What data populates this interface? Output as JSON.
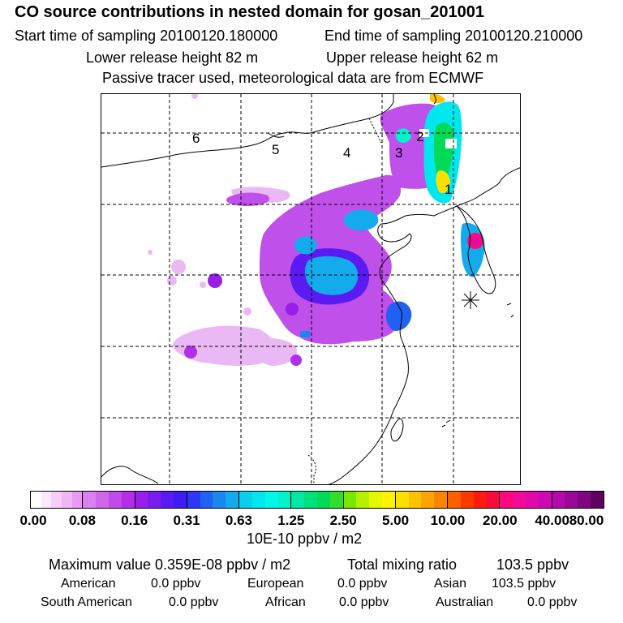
{
  "header": {
    "title": "CO  source contributions in nested domain for gosan_201001",
    "start_label": "Start time of sampling 20100120.180000",
    "end_label": "End time of sampling 20100120.210000",
    "lower_label": "Lower release height   82 m",
    "upper_label": "Upper release height   62 m",
    "note": "Passive tracer used, meteorological data are from ECMWF"
  },
  "map": {
    "region_labels": [
      "1",
      "2",
      "3",
      "4",
      "5",
      "6"
    ]
  },
  "colorbar": {
    "ticks": [
      "0.00",
      "0.08",
      "0.16",
      "0.31",
      "0.63",
      "1.25",
      "2.50",
      "5.00",
      "10.00",
      "20.00",
      "40.00",
      "80.00"
    ],
    "unit": "10E-10 ppbv / m2",
    "segments": [
      [
        "#ffffff",
        "#fbe8fc",
        "#f5cff8",
        "#efb6f5",
        "#e79cf2"
      ],
      [
        "#dd80ef",
        "#d066ec",
        "#c24aea",
        "#b22ee8"
      ],
      [
        "#9a1eea",
        "#7a1cee",
        "#5a1af2",
        "#3e1cf4"
      ],
      [
        "#2a3af4",
        "#2060f2",
        "#1a86f0",
        "#14aaee"
      ],
      [
        "#08d0ee",
        "#00e8ee",
        "#00f8e8",
        "#00f4cc"
      ],
      [
        "#00e8a4",
        "#00e07c",
        "#00da56",
        "#30e028"
      ],
      [
        "#78e800",
        "#b4f000",
        "#e6f800",
        "#fcf400"
      ],
      [
        "#fce000",
        "#fcc400",
        "#fca400",
        "#fc8400"
      ],
      [
        "#fc6000",
        "#fc3a00",
        "#fc1a10",
        "#f80a3a"
      ],
      [
        "#fc0a7c",
        "#f40a98",
        "#e00aa8",
        "#cc0ab4"
      ],
      [
        "#b40aac",
        "#9a0898",
        "#800680",
        "#5e0460"
      ]
    ]
  },
  "stats": {
    "max_value": "Maximum value  0.359E-08 ppbv / m2",
    "total_mixing": "Total mixing ratio",
    "total_value": "103.5 ppbv",
    "american_label": "American",
    "american_value": "0.0 ppbv",
    "european_label": "European",
    "european_value": "0.0 ppbv",
    "asian_label": "Asian",
    "asian_value": "103.5 ppbv",
    "south_american_label": "South American",
    "south_american_value": "0.0 ppbv",
    "african_label": "African",
    "african_value": "0.0 ppbv",
    "australian_label": "Australian",
    "australian_value": "0.0 ppbv"
  }
}
